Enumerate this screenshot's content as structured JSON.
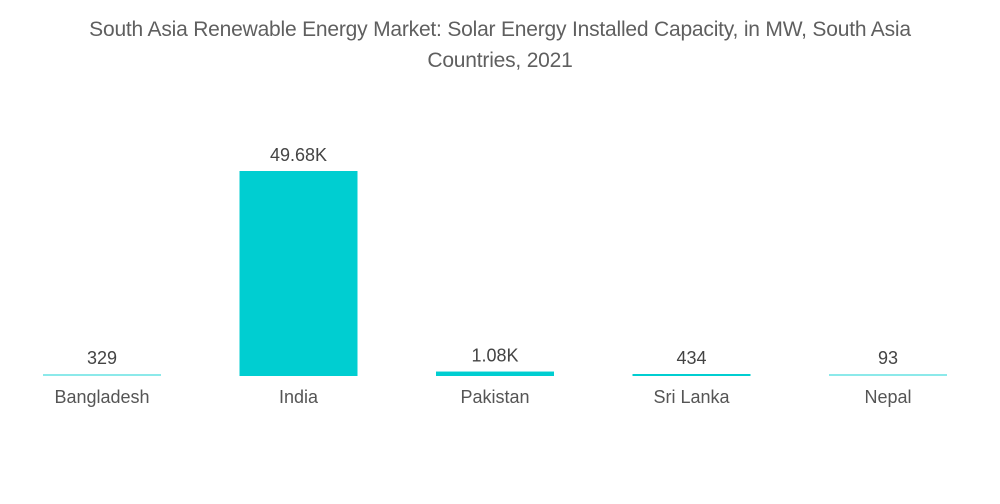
{
  "chart_data": {
    "type": "bar",
    "title": "South Asia Renewable Energy Market: Solar Energy Installed Capacity, in MW, South Asia Countries, 2021",
    "title_lines": [
      "South Asia Renewable Energy Market: Solar Energy Installed Capacity, in MW, South Asia",
      "Countries, 2021"
    ],
    "xlabel": "",
    "ylabel": "",
    "categories": [
      "Bangladesh",
      "India",
      "Pakistan",
      "Sri Lanka",
      "Nepal"
    ],
    "values": [
      329,
      49680,
      1080,
      434,
      93
    ],
    "data_labels": [
      "329",
      "49.68K",
      "1.08K",
      "434",
      "93"
    ],
    "ylim": [
      0,
      49680
    ],
    "grid": false,
    "legend": "none",
    "bar_color": "#00CED1"
  }
}
